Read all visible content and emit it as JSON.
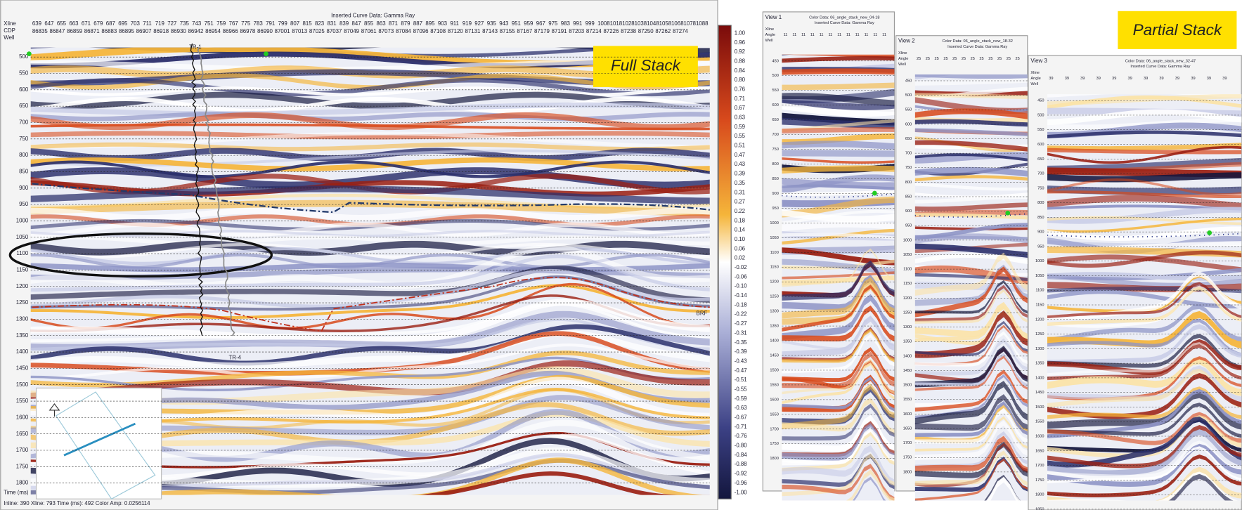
{
  "main": {
    "header": "Inserted Curve Data: Gamma Ray",
    "row_labels": [
      "Xline",
      "CDP",
      "Well"
    ],
    "xlines": [
      "639",
      "647",
      "655",
      "663",
      "671",
      "679",
      "687",
      "695",
      "703",
      "711",
      "719",
      "727",
      "735",
      "743",
      "751",
      "759",
      "767",
      "775",
      "783",
      "791",
      "799",
      "807",
      "815",
      "823",
      "831",
      "839",
      "847",
      "855",
      "863",
      "871",
      "879",
      "887",
      "895",
      "903",
      "911",
      "919",
      "927",
      "935",
      "943",
      "951",
      "959",
      "967",
      "975",
      "983",
      "991",
      "999",
      "1008",
      "1018",
      "1028",
      "1038",
      "1048",
      "1058",
      "1068",
      "1078",
      "1088"
    ],
    "cdps": [
      "86835",
      "86847",
      "86859",
      "86871",
      "86883",
      "86895",
      "86907",
      "86918",
      "86930",
      "86942",
      "86954",
      "86966",
      "86978",
      "86990",
      "87001",
      "87013",
      "87025",
      "87037",
      "87049",
      "87061",
      "87073",
      "87084",
      "87096",
      "87108",
      "87120",
      "87131",
      "87143",
      "87155",
      "87167",
      "87179",
      "87191",
      "87203",
      "87214",
      "87226",
      "87238",
      "87250",
      "87262",
      "87274"
    ],
    "time_labels": [
      "500",
      "550",
      "600",
      "650",
      "700",
      "750",
      "800",
      "850",
      "900",
      "950",
      "1000",
      "1050",
      "1100",
      "1150",
      "1200",
      "1250",
      "1300",
      "1350",
      "1400",
      "1450",
      "1500",
      "1550",
      "1600",
      "1650",
      "1700",
      "1750",
      "1800"
    ],
    "axis_label": "Time (ms)",
    "status": "Inline: 390  Xline: 793  Time (ms): 492  Color Amp: 0.0256114",
    "stack_label": "Full Stack",
    "wells": [
      "TR-1",
      "TR-4"
    ],
    "horizon": "BRF",
    "colorbar": [
      "1.00",
      "0.96",
      "0.92",
      "0.88",
      "0.84",
      "0.80",
      "0.76",
      "0.71",
      "0.67",
      "0.63",
      "0.59",
      "0.55",
      "0.51",
      "0.47",
      "0.43",
      "0.39",
      "0.35",
      "0.31",
      "0.27",
      "0.22",
      "0.18",
      "0.14",
      "0.10",
      "0.06",
      "0.02",
      "-0.02",
      "-0.06",
      "-0.10",
      "-0.14",
      "-0.18",
      "-0.22",
      "-0.27",
      "-0.31",
      "-0.35",
      "-0.39",
      "-0.43",
      "-0.47",
      "-0.51",
      "-0.55",
      "-0.59",
      "-0.63",
      "-0.67",
      "-0.71",
      "-0.76",
      "-0.80",
      "-0.84",
      "-0.88",
      "-0.92",
      "-0.96",
      "-1.00"
    ]
  },
  "views": [
    {
      "title": "View 1",
      "header": "Color Data: 06_angle_stack_new_04-18",
      "subheader": "Inserted Curve Data: Gamma Ray",
      "row_labels": [
        "Xline",
        "Angle",
        "Well"
      ],
      "angle": "11",
      "time_labels": [
        "450",
        "500",
        "550",
        "600",
        "650",
        "700",
        "750",
        "800",
        "850",
        "900",
        "950",
        "1000",
        "1050",
        "1100",
        "1150",
        "1200",
        "1250",
        "1300",
        "1350",
        "1400",
        "1450",
        "1500",
        "1550",
        "1600",
        "1650",
        "1700",
        "1750",
        "1800"
      ]
    },
    {
      "title": "View 2",
      "header": "Color Data: 06_angle_stack_new_18-32",
      "subheader": "Inserted Curve Data: Gamma Ray",
      "row_labels": [
        "Xline",
        "Angle",
        "Well"
      ],
      "angle": "25",
      "time_labels": [
        "450",
        "500",
        "550",
        "600",
        "650",
        "700",
        "750",
        "800",
        "850",
        "900",
        "950",
        "1000",
        "1050",
        "1100",
        "1150",
        "1200",
        "1250",
        "1300",
        "1350",
        "1400",
        "1450",
        "1500",
        "1550",
        "1600",
        "1650",
        "1700",
        "1750",
        "1800"
      ]
    },
    {
      "title": "View 3",
      "header": "Color Data: 06_angle_stack_new_32-47",
      "subheader": "Inserted Curve Data: Gamma Ray",
      "row_labels": [
        "Xline",
        "Angle",
        "Well"
      ],
      "angle": "39",
      "time_labels": [
        "450",
        "500",
        "550",
        "600",
        "650",
        "700",
        "750",
        "800",
        "850",
        "900",
        "950",
        "1000",
        "1050",
        "1100",
        "1150",
        "1200",
        "1250",
        "1300",
        "1350",
        "1400",
        "1450",
        "1500",
        "1550",
        "1600",
        "1650",
        "1700",
        "1750",
        "1800",
        "1850"
      ]
    }
  ],
  "partial_label": "Partial Stack"
}
